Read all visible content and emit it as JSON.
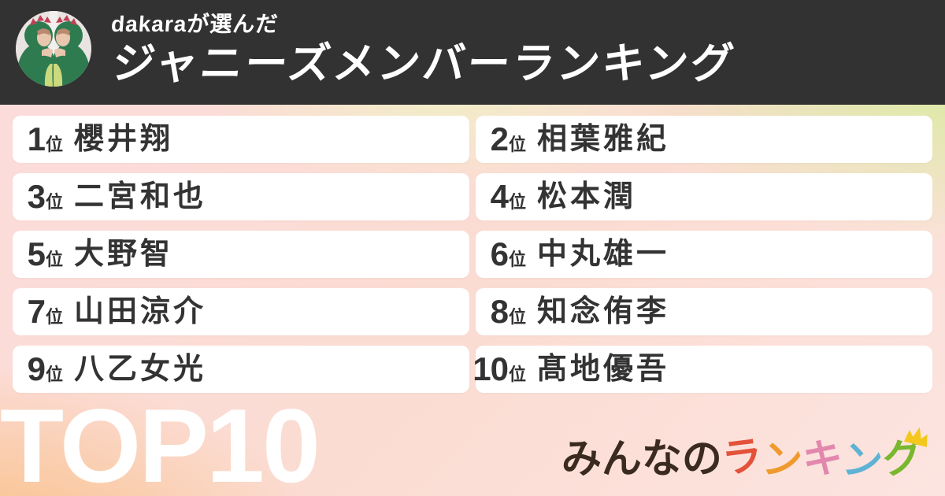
{
  "header": {
    "subtitle": "dakaraが選んだ",
    "title": "ジャニーズメンバーランキング",
    "avatar_description": "two-people-in-green-dinosaur-kigurumi"
  },
  "ranking": [
    {
      "rank": "1",
      "suffix": "位",
      "name": "櫻井翔"
    },
    {
      "rank": "2",
      "suffix": "位",
      "name": "相葉雅紀"
    },
    {
      "rank": "3",
      "suffix": "位",
      "name": "二宮和也"
    },
    {
      "rank": "4",
      "suffix": "位",
      "name": "松本潤"
    },
    {
      "rank": "5",
      "suffix": "位",
      "name": "大野智"
    },
    {
      "rank": "6",
      "suffix": "位",
      "name": "中丸雄一"
    },
    {
      "rank": "7",
      "suffix": "位",
      "name": "山田涼介"
    },
    {
      "rank": "8",
      "suffix": "位",
      "name": "知念侑李"
    },
    {
      "rank": "9",
      "suffix": "位",
      "name": "八乙女光"
    },
    {
      "rank": "10",
      "suffix": "位",
      "name": "髙地優吾"
    }
  ],
  "footer": {
    "top_label": "TOP10",
    "logo": {
      "main_text": "みんなの",
      "colored_letters": [
        {
          "char": "ラ",
          "color": "#e4523a"
        },
        {
          "char": "ン",
          "color": "#ef9a2e"
        },
        {
          "char": "キ",
          "color": "#e287ae"
        },
        {
          "char": "ン",
          "color": "#5fb2d4"
        },
        {
          "char": "グ",
          "color": "#79b72e"
        }
      ],
      "crown_color": "#f4c71d"
    }
  },
  "colors": {
    "header_bg": "#323232",
    "card_bg": "#ffffff",
    "text_dark": "#333333",
    "bg_top_right_green": "#d7ec9d",
    "bg_bottom_left_orange": "#f9bd7e",
    "bg_pink": "#fcdcdc"
  }
}
